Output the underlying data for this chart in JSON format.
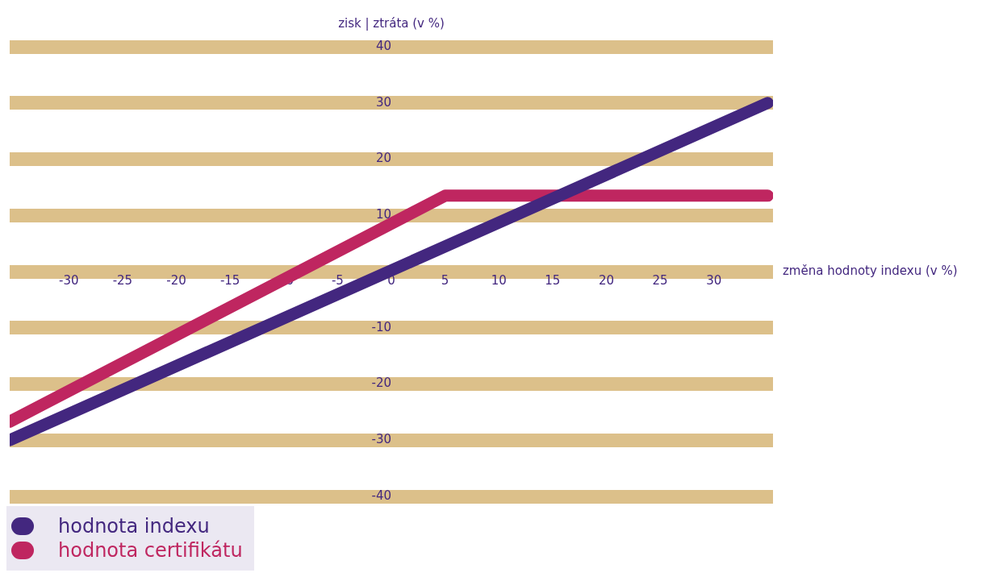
{
  "chart_data": {
    "type": "line",
    "xlabel": "změna hodnoty indexu (v %)",
    "ylabel": "zisk | ztráta (v %)",
    "series": [
      {
        "name": "hodnota indexu",
        "color": "#43277f",
        "x": [
          -35.5,
          35
        ],
        "values": [
          -30,
          30
        ]
      },
      {
        "name": "hodnota certifikátu",
        "color": "#bf2660",
        "x": [
          -35.5,
          5,
          35
        ],
        "values": [
          -26.7,
          13.5,
          13.5
        ]
      }
    ],
    "xlim": [
      -35.5,
      35.5
    ],
    "ylim": [
      -40,
      40
    ],
    "xticks": [
      -30,
      -25,
      -20,
      -15,
      -10,
      -5,
      0,
      5,
      10,
      15,
      20,
      25,
      30
    ],
    "yticks": [
      -40,
      -30,
      -20,
      -10,
      {
        "value": 0,
        "label": null
      },
      10,
      20,
      30,
      40
    ],
    "grid": "y",
    "legend": "bottom left",
    "marker": "none",
    "line_style": "solid"
  }
}
